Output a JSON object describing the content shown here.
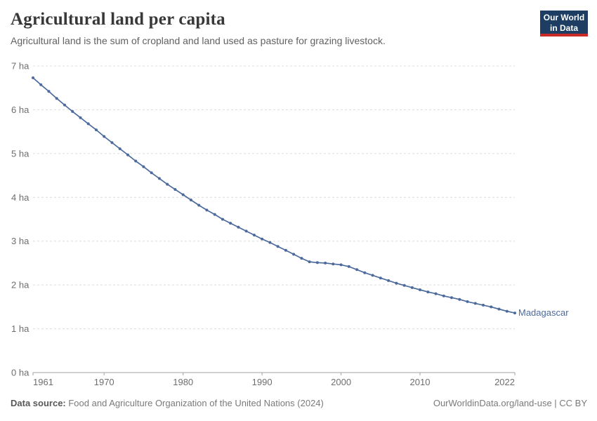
{
  "header": {
    "title": "Agricultural land per capita",
    "subtitle": "Agricultural land is the sum of cropland and land used as pasture for grazing livestock.",
    "logo": {
      "line1": "Our World",
      "line2": "in Data",
      "bg_color": "#1d3d63",
      "accent_color": "#ca2b28"
    }
  },
  "footer": {
    "source_label": "Data source:",
    "source_text": " Food and Agriculture Organization of the United Nations (2024)",
    "rights": "OurWorldinData.org/land-use | CC BY"
  },
  "colors": {
    "series_blue": "#4C6A9C",
    "gridline": "#dcdcdc",
    "axis": "#a1a1a1",
    "tick_label": "#6e6e6e"
  },
  "chart_data": {
    "type": "line",
    "title": "Agricultural land per capita",
    "xlabel": "",
    "ylabel": "",
    "unit_suffix": " ha",
    "grid": "horizontal-dashed",
    "legend_position": "end-of-line",
    "xlim": [
      1961,
      2022
    ],
    "ylim": [
      0,
      7
    ],
    "x_ticks": [
      1961,
      1970,
      1980,
      1990,
      2000,
      2010,
      2022
    ],
    "y_ticks": [
      {
        "value": 0,
        "label": "0 ha"
      },
      {
        "value": 1,
        "label": "1 ha"
      },
      {
        "value": 2,
        "label": "2 ha"
      },
      {
        "value": 3,
        "label": "3 ha"
      },
      {
        "value": 4,
        "label": "4 ha"
      },
      {
        "value": 5,
        "label": "5 ha"
      },
      {
        "value": 6,
        "label": "6 ha"
      },
      {
        "value": 7,
        "label": "7 ha"
      }
    ],
    "years": [
      1961,
      1962,
      1963,
      1964,
      1965,
      1966,
      1967,
      1968,
      1969,
      1970,
      1971,
      1972,
      1973,
      1974,
      1975,
      1976,
      1977,
      1978,
      1979,
      1980,
      1981,
      1982,
      1983,
      1984,
      1985,
      1986,
      1987,
      1988,
      1989,
      1990,
      1991,
      1992,
      1993,
      1994,
      1995,
      1996,
      1997,
      1998,
      1999,
      2000,
      2001,
      2002,
      2003,
      2004,
      2005,
      2006,
      2007,
      2008,
      2009,
      2010,
      2011,
      2012,
      2013,
      2014,
      2015,
      2016,
      2017,
      2018,
      2019,
      2020,
      2021,
      2022
    ],
    "series": [
      {
        "name": "Madagascar",
        "color": "#4C6A9C",
        "values": [
          6.73,
          6.57,
          6.42,
          6.26,
          6.11,
          5.96,
          5.82,
          5.68,
          5.54,
          5.39,
          5.25,
          5.11,
          4.97,
          4.83,
          4.7,
          4.56,
          4.43,
          4.3,
          4.18,
          4.06,
          3.94,
          3.82,
          3.71,
          3.61,
          3.5,
          3.41,
          3.32,
          3.23,
          3.14,
          3.05,
          2.97,
          2.88,
          2.79,
          2.7,
          2.61,
          2.53,
          2.51,
          2.5,
          2.48,
          2.46,
          2.42,
          2.35,
          2.28,
          2.22,
          2.16,
          2.1,
          2.04,
          1.99,
          1.94,
          1.89,
          1.84,
          1.8,
          1.75,
          1.71,
          1.67,
          1.62,
          1.58,
          1.54,
          1.5,
          1.45,
          1.4,
          1.36
        ]
      }
    ]
  }
}
